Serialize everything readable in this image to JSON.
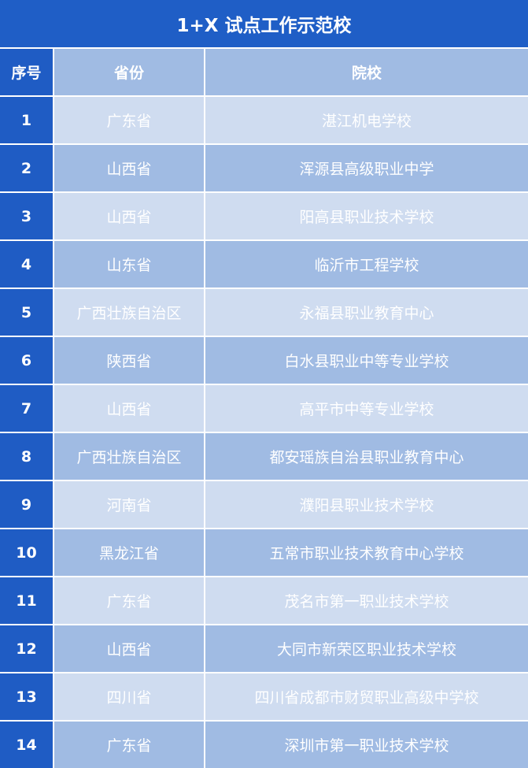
{
  "title": "1+X 试点工作示范校",
  "header": {
    "index": "序号",
    "province": "省份",
    "school": "院校"
  },
  "rows": [
    {
      "index": "1",
      "province": "广东省",
      "school": "湛江机电学校"
    },
    {
      "index": "2",
      "province": "山西省",
      "school": "浑源县高级职业中学"
    },
    {
      "index": "3",
      "province": "山西省",
      "school": "阳高县职业技术学校"
    },
    {
      "index": "4",
      "province": "山东省",
      "school": "临沂市工程学校"
    },
    {
      "index": "5",
      "province": "广西壮族自治区",
      "school": "永福县职业教育中心"
    },
    {
      "index": "6",
      "province": "陕西省",
      "school": "白水县职业中等专业学校"
    },
    {
      "index": "7",
      "province": "山西省",
      "school": "高平市中等专业学校"
    },
    {
      "index": "8",
      "province": "广西壮族自治区",
      "school": "都安瑶族自治县职业教育中心"
    },
    {
      "index": "9",
      "province": "河南省",
      "school": "濮阳县职业技术学校"
    },
    {
      "index": "10",
      "province": "黑龙江省",
      "school": "五常市职业技术教育中心学校"
    },
    {
      "index": "11",
      "province": "广东省",
      "school": "茂名市第一职业技术学校"
    },
    {
      "index": "12",
      "province": "山西省",
      "school": "大同市新荣区职业技术学校"
    },
    {
      "index": "13",
      "province": "四川省",
      "school": "四川省成都市财贸职业高级中学校"
    },
    {
      "index": "14",
      "province": "广东省",
      "school": "深圳市第一职业技术学校"
    }
  ],
  "colors": {
    "title_bg": "#1f5ec6",
    "index_bg": "#1f5cc4",
    "header_bg": "#a0bbe3",
    "row_light": "#cfdcf0",
    "row_dark": "#a0bbe3"
  }
}
